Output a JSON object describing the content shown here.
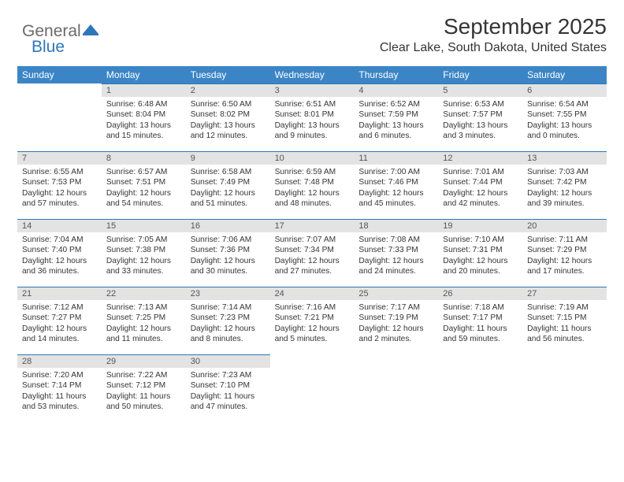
{
  "logo": {
    "part1": "General",
    "part2": "Blue"
  },
  "header": {
    "month_title": "September 2025",
    "location": "Clear Lake, South Dakota, United States"
  },
  "day_headers": [
    "Sunday",
    "Monday",
    "Tuesday",
    "Wednesday",
    "Thursday",
    "Friday",
    "Saturday"
  ],
  "colors": {
    "header_bg": "#3b85c6",
    "header_text": "#ffffff",
    "cell_border": "#2f76b9",
    "num_strip_bg": "#e3e3e3",
    "body_text": "#353535"
  },
  "weeks": [
    [
      {
        "blank": true
      },
      {
        "num": "1",
        "sunrise": "Sunrise: 6:48 AM",
        "sunset": "Sunset: 8:04 PM",
        "daylight": "Daylight: 13 hours and 15 minutes."
      },
      {
        "num": "2",
        "sunrise": "Sunrise: 6:50 AM",
        "sunset": "Sunset: 8:02 PM",
        "daylight": "Daylight: 13 hours and 12 minutes."
      },
      {
        "num": "3",
        "sunrise": "Sunrise: 6:51 AM",
        "sunset": "Sunset: 8:01 PM",
        "daylight": "Daylight: 13 hours and 9 minutes."
      },
      {
        "num": "4",
        "sunrise": "Sunrise: 6:52 AM",
        "sunset": "Sunset: 7:59 PM",
        "daylight": "Daylight: 13 hours and 6 minutes."
      },
      {
        "num": "5",
        "sunrise": "Sunrise: 6:53 AM",
        "sunset": "Sunset: 7:57 PM",
        "daylight": "Daylight: 13 hours and 3 minutes."
      },
      {
        "num": "6",
        "sunrise": "Sunrise: 6:54 AM",
        "sunset": "Sunset: 7:55 PM",
        "daylight": "Daylight: 13 hours and 0 minutes."
      }
    ],
    [
      {
        "num": "7",
        "sunrise": "Sunrise: 6:55 AM",
        "sunset": "Sunset: 7:53 PM",
        "daylight": "Daylight: 12 hours and 57 minutes."
      },
      {
        "num": "8",
        "sunrise": "Sunrise: 6:57 AM",
        "sunset": "Sunset: 7:51 PM",
        "daylight": "Daylight: 12 hours and 54 minutes."
      },
      {
        "num": "9",
        "sunrise": "Sunrise: 6:58 AM",
        "sunset": "Sunset: 7:49 PM",
        "daylight": "Daylight: 12 hours and 51 minutes."
      },
      {
        "num": "10",
        "sunrise": "Sunrise: 6:59 AM",
        "sunset": "Sunset: 7:48 PM",
        "daylight": "Daylight: 12 hours and 48 minutes."
      },
      {
        "num": "11",
        "sunrise": "Sunrise: 7:00 AM",
        "sunset": "Sunset: 7:46 PM",
        "daylight": "Daylight: 12 hours and 45 minutes."
      },
      {
        "num": "12",
        "sunrise": "Sunrise: 7:01 AM",
        "sunset": "Sunset: 7:44 PM",
        "daylight": "Daylight: 12 hours and 42 minutes."
      },
      {
        "num": "13",
        "sunrise": "Sunrise: 7:03 AM",
        "sunset": "Sunset: 7:42 PM",
        "daylight": "Daylight: 12 hours and 39 minutes."
      }
    ],
    [
      {
        "num": "14",
        "sunrise": "Sunrise: 7:04 AM",
        "sunset": "Sunset: 7:40 PM",
        "daylight": "Daylight: 12 hours and 36 minutes."
      },
      {
        "num": "15",
        "sunrise": "Sunrise: 7:05 AM",
        "sunset": "Sunset: 7:38 PM",
        "daylight": "Daylight: 12 hours and 33 minutes."
      },
      {
        "num": "16",
        "sunrise": "Sunrise: 7:06 AM",
        "sunset": "Sunset: 7:36 PM",
        "daylight": "Daylight: 12 hours and 30 minutes."
      },
      {
        "num": "17",
        "sunrise": "Sunrise: 7:07 AM",
        "sunset": "Sunset: 7:34 PM",
        "daylight": "Daylight: 12 hours and 27 minutes."
      },
      {
        "num": "18",
        "sunrise": "Sunrise: 7:08 AM",
        "sunset": "Sunset: 7:33 PM",
        "daylight": "Daylight: 12 hours and 24 minutes."
      },
      {
        "num": "19",
        "sunrise": "Sunrise: 7:10 AM",
        "sunset": "Sunset: 7:31 PM",
        "daylight": "Daylight: 12 hours and 20 minutes."
      },
      {
        "num": "20",
        "sunrise": "Sunrise: 7:11 AM",
        "sunset": "Sunset: 7:29 PM",
        "daylight": "Daylight: 12 hours and 17 minutes."
      }
    ],
    [
      {
        "num": "21",
        "sunrise": "Sunrise: 7:12 AM",
        "sunset": "Sunset: 7:27 PM",
        "daylight": "Daylight: 12 hours and 14 minutes."
      },
      {
        "num": "22",
        "sunrise": "Sunrise: 7:13 AM",
        "sunset": "Sunset: 7:25 PM",
        "daylight": "Daylight: 12 hours and 11 minutes."
      },
      {
        "num": "23",
        "sunrise": "Sunrise: 7:14 AM",
        "sunset": "Sunset: 7:23 PM",
        "daylight": "Daylight: 12 hours and 8 minutes."
      },
      {
        "num": "24",
        "sunrise": "Sunrise: 7:16 AM",
        "sunset": "Sunset: 7:21 PM",
        "daylight": "Daylight: 12 hours and 5 minutes."
      },
      {
        "num": "25",
        "sunrise": "Sunrise: 7:17 AM",
        "sunset": "Sunset: 7:19 PM",
        "daylight": "Daylight: 12 hours and 2 minutes."
      },
      {
        "num": "26",
        "sunrise": "Sunrise: 7:18 AM",
        "sunset": "Sunset: 7:17 PM",
        "daylight": "Daylight: 11 hours and 59 minutes."
      },
      {
        "num": "27",
        "sunrise": "Sunrise: 7:19 AM",
        "sunset": "Sunset: 7:15 PM",
        "daylight": "Daylight: 11 hours and 56 minutes."
      }
    ],
    [
      {
        "num": "28",
        "sunrise": "Sunrise: 7:20 AM",
        "sunset": "Sunset: 7:14 PM",
        "daylight": "Daylight: 11 hours and 53 minutes."
      },
      {
        "num": "29",
        "sunrise": "Sunrise: 7:22 AM",
        "sunset": "Sunset: 7:12 PM",
        "daylight": "Daylight: 11 hours and 50 minutes."
      },
      {
        "num": "30",
        "sunrise": "Sunrise: 7:23 AM",
        "sunset": "Sunset: 7:10 PM",
        "daylight": "Daylight: 11 hours and 47 minutes."
      },
      {
        "blank": true
      },
      {
        "blank": true
      },
      {
        "blank": true
      },
      {
        "blank": true
      }
    ]
  ]
}
